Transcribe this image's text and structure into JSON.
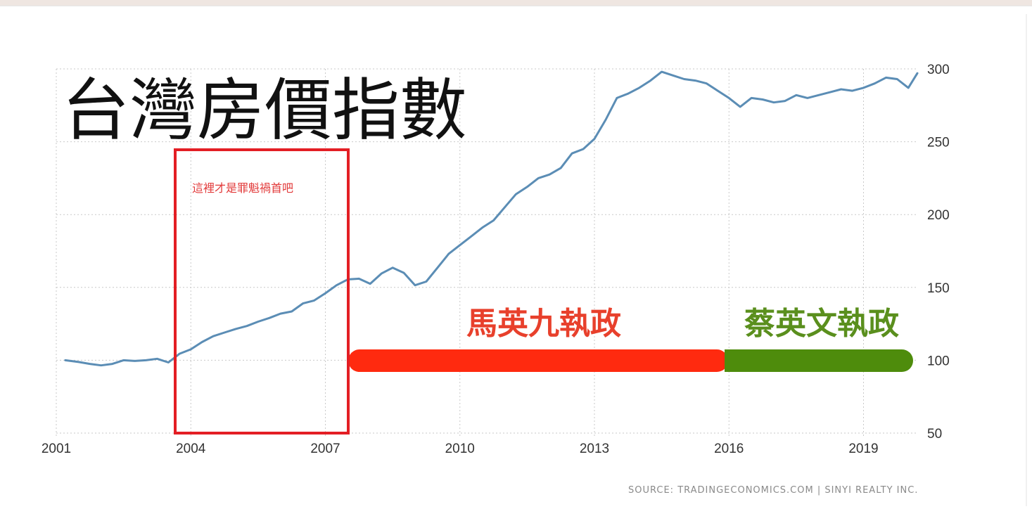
{
  "annotations": {
    "title": "台灣房價指數",
    "highlight_note": "這裡才是罪魁禍首吧",
    "era_ma": "馬英九執政",
    "era_tsai": "蔡英文執政",
    "source": "SOURCE: TRADINGECONOMICS.COM | SINYI REALTY INC."
  },
  "colors": {
    "line": "#5b8db5",
    "era_ma": "#ff2a0f",
    "era_tsai": "#4e8c0c",
    "era_ma_text": "#e8402c",
    "era_tsai_text": "#5a8f1d",
    "highlight_box": "#e31e24"
  },
  "chart_data": {
    "type": "line",
    "title": "台灣房價指數",
    "xlabel": "",
    "ylabel": "",
    "xlim": [
      2001,
      2020.2
    ],
    "ylim": [
      50,
      300
    ],
    "x_ticks": [
      "2001",
      "2004",
      "2007",
      "2010",
      "2013",
      "2016",
      "2019"
    ],
    "y_ticks": [
      "50",
      "100",
      "150",
      "200",
      "250",
      "300"
    ],
    "grid": true,
    "series": [
      {
        "x": [
          2001.2,
          2001.5,
          2001.75,
          2002.0,
          2002.25,
          2002.5,
          2002.75,
          2003.0,
          2003.25,
          2003.5,
          2003.75,
          2004.0,
          2004.25,
          2004.5,
          2004.75,
          2005.0,
          2005.25,
          2005.5,
          2005.75,
          2006.0,
          2006.25,
          2006.5,
          2006.75,
          2007.0,
          2007.25,
          2007.5,
          2007.75,
          2008.0,
          2008.25,
          2008.5,
          2008.75,
          2009.0,
          2009.25,
          2009.5,
          2009.75,
          2010.0,
          2010.25,
          2010.5,
          2010.75,
          2011.0,
          2011.25,
          2011.5,
          2011.75,
          2012.0,
          2012.25,
          2012.5,
          2012.75,
          2013.0,
          2013.25,
          2013.5,
          2013.75,
          2014.0,
          2014.25,
          2014.5,
          2014.75,
          2015.0,
          2015.25,
          2015.5,
          2015.75,
          2016.0,
          2016.25,
          2016.5,
          2016.75,
          2017.0,
          2017.25,
          2017.5,
          2017.75,
          2018.0,
          2018.25,
          2018.5,
          2018.75,
          2019.0,
          2019.25,
          2019.5,
          2019.75,
          2020.0,
          2020.2
        ],
        "values": [
          100,
          98.8,
          97.5,
          96.5,
          97.5,
          100,
          99.5,
          100,
          101,
          98.5,
          104.5,
          107.5,
          112.5,
          116.5,
          119,
          121.5,
          123.5,
          126.5,
          129,
          132,
          133.5,
          139,
          141,
          146,
          151.5,
          155.5,
          156,
          152.5,
          159.5,
          163.5,
          160,
          151.5,
          154,
          163.5,
          173,
          179,
          185,
          191,
          196,
          205,
          214,
          219,
          225,
          227.5,
          232,
          242,
          245,
          252,
          265,
          280,
          283,
          287,
          292,
          298,
          295.5,
          293,
          292,
          290,
          285,
          280,
          274,
          280,
          279,
          277,
          278,
          282,
          280,
          282,
          284,
          286,
          285,
          287,
          290,
          294,
          293,
          287,
          297
        ]
      }
    ]
  }
}
